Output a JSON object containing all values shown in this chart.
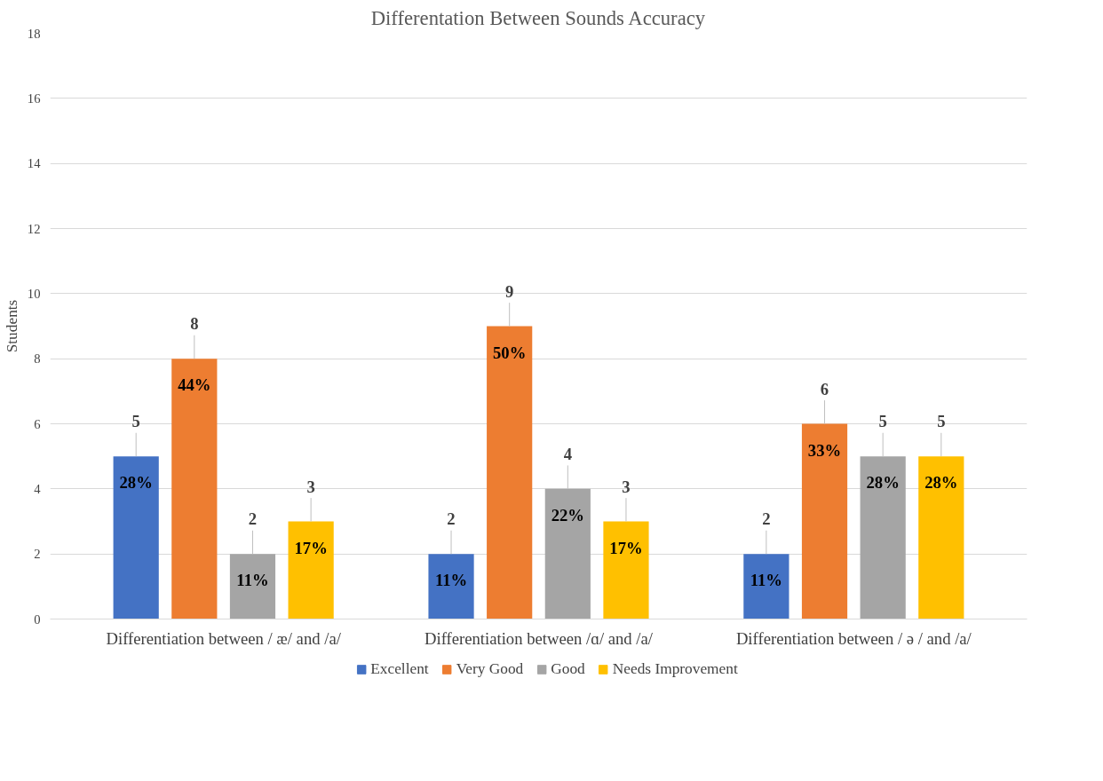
{
  "chart_data": {
    "type": "bar",
    "title": "Differentation Between Sounds Accuracy",
    "ylabel": "Students",
    "categories": [
      "Differentiation between / æ/ and /a/",
      "Differentiation between /ɑ/ and /a/",
      "Differentiation between / ə / and /a/"
    ],
    "series": [
      {
        "name": "Excellent",
        "color": "#4472c4",
        "values": [
          5,
          2,
          2
        ]
      },
      {
        "name": "Very Good",
        "color": "#ed7d31",
        "values": [
          8,
          9,
          6
        ]
      },
      {
        "name": "Good",
        "color": "#a5a5a5",
        "values": [
          2,
          4,
          5
        ]
      },
      {
        "name": "Needs Improvement",
        "color": "#ffc000",
        "values": [
          3,
          3,
          5
        ]
      }
    ],
    "annotations": [
      "28%",
      "11%",
      "11%",
      "44%",
      "50%",
      "33%",
      "11%",
      "22%",
      "28%",
      "17%",
      "17%",
      "28%"
    ],
    "ylim": [
      0,
      18
    ],
    "yticks": [
      0,
      2,
      4,
      6,
      8,
      10,
      12,
      14,
      16,
      18
    ],
    "grid": "y",
    "legend": "bottom",
    "data_labels": true
  }
}
